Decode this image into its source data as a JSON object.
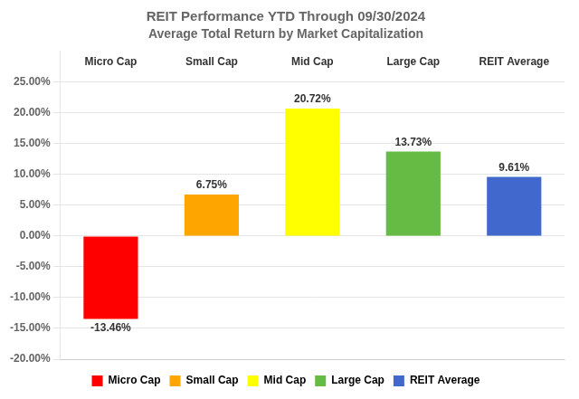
{
  "chart_data": {
    "type": "bar",
    "title": "REIT Performance YTD Through 09/30/2024",
    "subtitle": "Average Total Return by Market Capitalization",
    "categories": [
      "Micro Cap",
      "Small Cap",
      "Mid Cap",
      "Large Cap",
      "REIT Average"
    ],
    "values": [
      -13.46,
      6.75,
      20.72,
      13.73,
      9.61
    ],
    "value_labels": [
      "-13.46%",
      "6.75%",
      "20.72%",
      "13.73%",
      "9.61%"
    ],
    "data_labels": true,
    "colors": [
      "#ff0000",
      "#ffa500",
      "#ffff00",
      "#66bb44",
      "#4169cd"
    ],
    "ylim": [
      -20,
      30
    ],
    "yticks": [
      {
        "value": -20,
        "label": "-20.00%"
      },
      {
        "value": -15,
        "label": "-15.00%"
      },
      {
        "value": -10,
        "label": "-10.00%"
      },
      {
        "value": -5,
        "label": "-5.00%"
      },
      {
        "value": 0,
        "label": "0.00%"
      },
      {
        "value": 5,
        "label": "5.00%"
      },
      {
        "value": 10,
        "label": "10.00%"
      },
      {
        "value": 15,
        "label": "15.00%"
      },
      {
        "value": 20,
        "label": "20.00%"
      },
      {
        "value": 25,
        "label": "25.00%"
      }
    ],
    "grid": true,
    "legend": "bottom",
    "tick_labels": "y"
  }
}
